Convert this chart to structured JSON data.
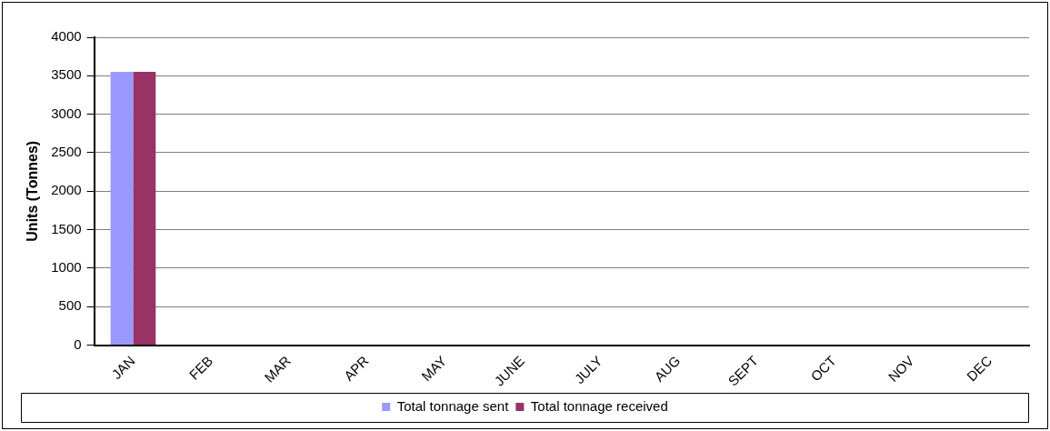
{
  "chart_data": {
    "type": "bar",
    "ylabel": "Units (Tonnes)",
    "categories": [
      "JAN",
      "FEB",
      "MAR",
      "APR",
      "MAY",
      "JUNE",
      "JULY",
      "AUG",
      "SEPT",
      "OCT",
      "NOV",
      "DEC"
    ],
    "series": [
      {
        "name": "Total tonnage sent",
        "color": "#9999ff",
        "values": [
          3550,
          null,
          null,
          null,
          null,
          null,
          null,
          null,
          null,
          null,
          null,
          null
        ]
      },
      {
        "name": "Total tonnage received",
        "color": "#993366",
        "values": [
          3550,
          null,
          null,
          null,
          null,
          null,
          null,
          null,
          null,
          null,
          null,
          null
        ]
      }
    ],
    "ylim": [
      0,
      4000
    ],
    "yticks": [
      0,
      500,
      1000,
      1500,
      2000,
      2500,
      3000,
      3500,
      4000
    ],
    "grid": "y",
    "legend": "bottom"
  }
}
